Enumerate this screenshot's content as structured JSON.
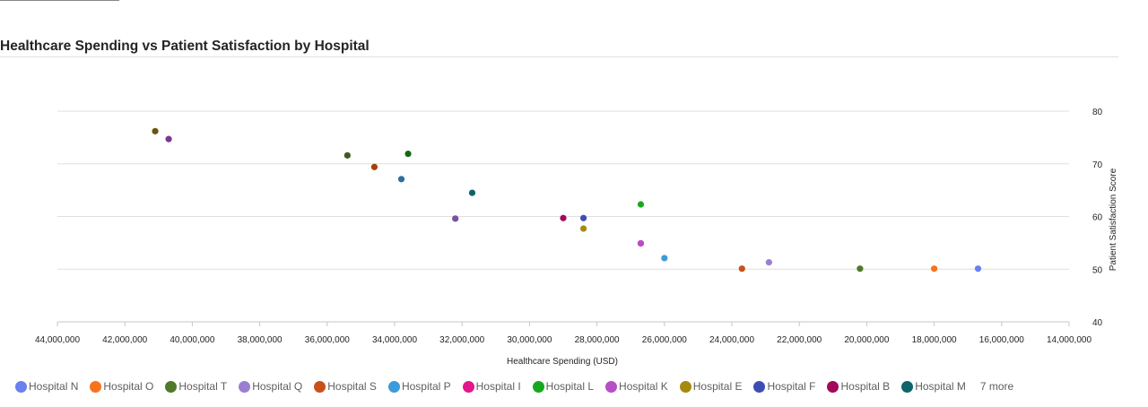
{
  "chart_data": {
    "type": "scatter",
    "title": "Healthcare Spending vs Patient Satisfaction by Hospital",
    "xlabel": "Healthcare Spending (USD)",
    "ylabel": "Patient Satisfaction Score",
    "xlim": [
      44000000,
      14000000
    ],
    "x_reversed": true,
    "ylim": [
      40,
      80
    ],
    "x_ticks": [
      44000000,
      42000000,
      40000000,
      38000000,
      36000000,
      34000000,
      32000000,
      30000000,
      28000000,
      26000000,
      24000000,
      22000000,
      20000000,
      18000000,
      16000000,
      14000000
    ],
    "x_tick_labels": [
      "44,000,000",
      "42,000,000",
      "40,000,000",
      "38,000,000",
      "36,000,000",
      "34,000,000",
      "32,000,000",
      "30,000,000",
      "28,000,000",
      "26,000,000",
      "24,000,000",
      "22,000,000",
      "20,000,000",
      "18,000,000",
      "16,000,000",
      "14,000,000"
    ],
    "y_ticks": [
      40,
      50,
      60,
      70,
      80
    ],
    "y_tick_labels": [
      "40",
      "50",
      "60",
      "70",
      "80"
    ],
    "y_axis_position": "right",
    "grid": true,
    "legend_position": "bottom",
    "legend_more": "7 more",
    "series": [
      {
        "name": "Hospital N",
        "color": "#6B7FF0",
        "points": [
          {
            "x": 16700000,
            "y": 50.1
          }
        ]
      },
      {
        "name": "Hospital O",
        "color": "#F6731C",
        "points": [
          {
            "x": 18000000,
            "y": 50.1
          }
        ]
      },
      {
        "name": "Hospital T",
        "color": "#4E7A2A",
        "points": [
          {
            "x": 20200000,
            "y": 50.1
          }
        ]
      },
      {
        "name": "Hospital Q",
        "color": "#9A7FD1",
        "points": [
          {
            "x": 22900000,
            "y": 51.3
          }
        ]
      },
      {
        "name": "Hospital S",
        "color": "#C8511B",
        "points": [
          {
            "x": 23700000,
            "y": 50.1
          }
        ]
      },
      {
        "name": "Hospital P",
        "color": "#3D9BDB",
        "points": [
          {
            "x": 26000000,
            "y": 52.1
          }
        ]
      },
      {
        "name": "Hospital I",
        "color": "#E3168E",
        "points": [
          {
            "x": 26700000,
            "y": 54.9
          }
        ]
      },
      {
        "name": "Hospital L",
        "color": "#17A81F",
        "points": [
          {
            "x": 26700000,
            "y": 62.3
          }
        ]
      },
      {
        "name": "Hospital K",
        "color": "#B84DC6",
        "points": [
          {
            "x": 26700000,
            "y": 54.9
          }
        ]
      },
      {
        "name": "Hospital E",
        "color": "#A68A0D",
        "points": [
          {
            "x": 28400000,
            "y": 57.7
          }
        ]
      },
      {
        "name": "Hospital F",
        "color": "#3E4DB5",
        "points": [
          {
            "x": 28400000,
            "y": 59.7
          }
        ]
      },
      {
        "name": "Hospital B",
        "color": "#A3085A",
        "points": [
          {
            "x": 29000000,
            "y": 59.7
          }
        ]
      },
      {
        "name": "Hospital M",
        "color": "#0D6469",
        "points": [
          {
            "x": 31700000,
            "y": 64.5
          }
        ]
      }
    ],
    "unlisted_points": [
      {
        "x": 41100000,
        "y": 76.2,
        "color": "#6E5310"
      },
      {
        "x": 40700000,
        "y": 74.7,
        "color": "#7B3792"
      },
      {
        "x": 35400000,
        "y": 71.6,
        "color": "#3F5B27"
      },
      {
        "x": 34600000,
        "y": 69.4,
        "color": "#A5400B"
      },
      {
        "x": 33800000,
        "y": 67.1,
        "color": "#2E6E9E"
      },
      {
        "x": 33600000,
        "y": 71.9,
        "color": "#126A12"
      },
      {
        "x": 32200000,
        "y": 59.6,
        "color": "#7851A0"
      }
    ]
  }
}
